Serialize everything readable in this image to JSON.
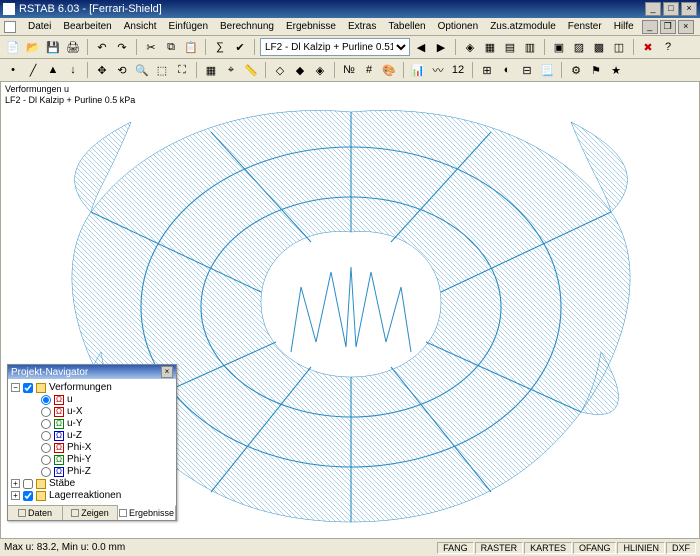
{
  "window": {
    "title": "RSTAB 6.03 - [Ferrari-Shield]",
    "buttons": {
      "min": "_",
      "max": "□",
      "close": "×"
    }
  },
  "mdi_buttons": {
    "min": "_",
    "restore": "❐",
    "close": "×"
  },
  "menu": [
    "Datei",
    "Bearbeiten",
    "Ansicht",
    "Einfügen",
    "Berechnung",
    "Ergebnisse",
    "Extras",
    "Tabellen",
    "Optionen",
    "Zus.atzmodule",
    "Fenster",
    "Hilfe"
  ],
  "toolbar1": {
    "dropdown_value": "LF2 - Dl Kalzip + Purline 0.51…"
  },
  "viewport": {
    "line1": "Verformungen u",
    "line2": "LF2 - Dl Kalzip + Purline 0.5 kPa",
    "mesh_color": "#2a8cc7",
    "background": "#ffffff"
  },
  "navigator": {
    "title": "Projekt-Navigator",
    "tree": {
      "root": {
        "label": "Verformungen",
        "checked": true,
        "expanded": true
      },
      "items": [
        {
          "label": "u",
          "color": "#c00000",
          "selected": true
        },
        {
          "label": "u-X",
          "color": "#c00000"
        },
        {
          "label": "u-Y",
          "color": "#008000"
        },
        {
          "label": "u-Z",
          "color": "#0000c0"
        },
        {
          "label": "Phi-X",
          "color": "#c00000"
        },
        {
          "label": "Phi-Y",
          "color": "#008000"
        },
        {
          "label": "Phi-Z",
          "color": "#0000c0"
        }
      ],
      "groups": [
        {
          "label": "Stäbe",
          "checked": false
        },
        {
          "label": "Lagerreaktionen",
          "checked": true
        }
      ]
    },
    "tabs": [
      {
        "label": "Daten"
      },
      {
        "label": "Zeigen"
      },
      {
        "label": "Ergebnisse",
        "active": true
      }
    ]
  },
  "statusbar": {
    "left": "Max u: 83.2, Min u: 0.0 mm",
    "cells": [
      "FANG",
      "RASTER",
      "KARTES",
      "OFANG",
      "HLINIEN",
      "DXF"
    ]
  },
  "colors": {
    "titlebar_from": "#0a246a",
    "titlebar_to": "#3a6ea5",
    "ui_bg": "#ece9d8",
    "border": "#aca899",
    "mesh": "#2a8cc7"
  }
}
